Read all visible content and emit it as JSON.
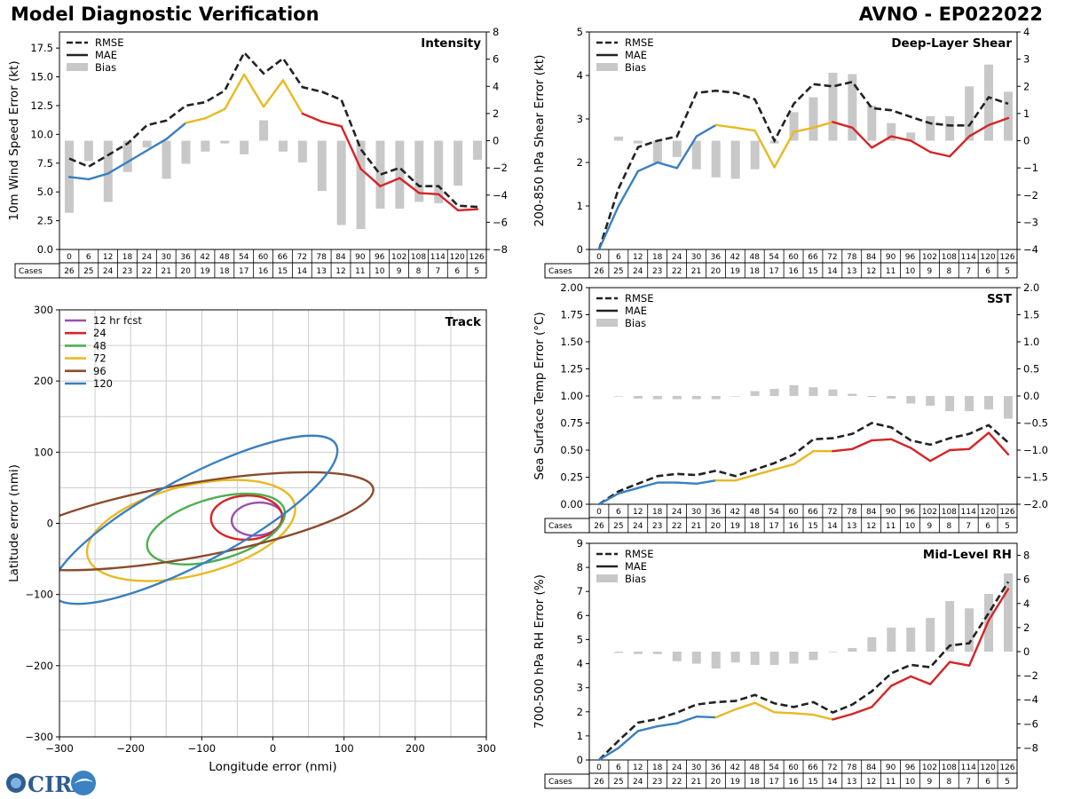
{
  "header": {
    "title_left": "Model Diagnostic Verification",
    "title_right": "AVNO - EP022022"
  },
  "logo_text": "CIRA",
  "leads": [
    "0",
    "6",
    "12",
    "18",
    "24",
    "30",
    "36",
    "42",
    "48",
    "54",
    "60",
    "66",
    "72",
    "78",
    "84",
    "90",
    "96",
    "102",
    "108",
    "114",
    "120",
    "126"
  ],
  "cases_label": "Cases",
  "cases": [
    "26",
    "25",
    "24",
    "23",
    "22",
    "21",
    "20",
    "19",
    "18",
    "17",
    "16",
    "15",
    "14",
    "13",
    "12",
    "11",
    "10",
    "9",
    "8",
    "7",
    "6",
    "5"
  ],
  "legend_labels": {
    "rmse": "RMSE",
    "mae": "MAE",
    "bias": "Bias"
  },
  "colors": {
    "early": "#3a7fbf",
    "mid": "#e8b923",
    "late": "#d62426",
    "rmse": "#222222",
    "bias": "#c8c8c8"
  },
  "chart_data": [
    {
      "id": "intensity",
      "type": "line",
      "title": "Intensity",
      "ylabel": "10m Wind Speed Error (kt)",
      "ylim": [
        0,
        18.9
      ],
      "yticks": [
        "0.0",
        "2.5",
        "5.0",
        "7.5",
        "10.0",
        "12.5",
        "15.0",
        "17.5"
      ],
      "yticks_val": [
        0,
        2.5,
        5,
        7.5,
        10,
        12.5,
        15,
        17.5
      ],
      "y2lim": [
        -8,
        8
      ],
      "y2ticks": [
        "−8",
        "−6",
        "−4",
        "−2",
        "0",
        "2",
        "4",
        "6",
        "8"
      ],
      "y2ticks_val": [
        -8,
        -6,
        -4,
        -2,
        0,
        2,
        4,
        6,
        8
      ],
      "x": [
        0,
        6,
        12,
        18,
        24,
        30,
        36,
        42,
        48,
        54,
        60,
        66,
        72,
        78,
        84,
        90,
        96,
        102,
        108,
        114,
        120,
        126
      ],
      "rmse": [
        7.9,
        7.2,
        8.2,
        9.2,
        10.8,
        11.2,
        12.5,
        12.8,
        13.8,
        17.1,
        15.3,
        16.6,
        14.1,
        13.7,
        13.0,
        8.7,
        6.5,
        7.1,
        5.5,
        5.5,
        3.8,
        3.7
      ],
      "mae": [
        6.3,
        6.1,
        6.6,
        7.6,
        8.6,
        9.6,
        11.0,
        11.4,
        12.2,
        15.2,
        12.4,
        14.7,
        11.8,
        11.1,
        10.7,
        7.0,
        5.5,
        6.2,
        4.9,
        4.8,
        3.4,
        3.5
      ],
      "bias": [
        -5.3,
        -1.5,
        -4.5,
        -2.3,
        -0.5,
        -2.8,
        -1.7,
        -0.8,
        -0.2,
        -1.0,
        1.5,
        -0.8,
        -1.6,
        -3.7,
        -6.2,
        -6.5,
        -5.0,
        -5.0,
        -4.5,
        -4.6,
        -3.3,
        -1.4
      ]
    },
    {
      "id": "shear",
      "type": "line",
      "title": "Deep-Layer Shear",
      "ylabel": "200-850 hPa Shear Error (kt)",
      "ylim": [
        0,
        5
      ],
      "yticks": [
        "0",
        "1",
        "2",
        "3",
        "4",
        "5"
      ],
      "yticks_val": [
        0,
        1,
        2,
        3,
        4,
        5
      ],
      "y2lim": [
        -4,
        4
      ],
      "y2ticks": [
        "−4",
        "−3",
        "−2",
        "−1",
        "0",
        "1",
        "2",
        "3",
        "4"
      ],
      "y2ticks_val": [
        -4,
        -3,
        -2,
        -1,
        0,
        1,
        2,
        3,
        4
      ],
      "x": [
        0,
        6,
        12,
        18,
        24,
        30,
        36,
        42,
        48,
        54,
        60,
        66,
        72,
        78,
        84,
        90,
        96,
        102,
        108,
        114,
        120,
        126
      ],
      "rmse": [
        0.0,
        1.4,
        2.35,
        2.5,
        2.6,
        3.6,
        3.65,
        3.6,
        3.45,
        2.5,
        3.35,
        3.8,
        3.75,
        3.85,
        3.25,
        3.2,
        3.05,
        2.9,
        2.85,
        2.85,
        3.5,
        3.35
      ],
      "mae": [
        0.0,
        1.0,
        1.8,
        2.0,
        1.87,
        2.6,
        2.86,
        2.8,
        2.73,
        1.89,
        2.7,
        2.8,
        2.93,
        2.8,
        2.34,
        2.6,
        2.5,
        2.24,
        2.14,
        2.6,
        2.86,
        3.02
      ],
      "bias": [
        0.0,
        0.15,
        -0.1,
        -0.8,
        -0.6,
        -1.05,
        -1.35,
        -1.4,
        -1.05,
        -0.1,
        1.05,
        1.6,
        2.5,
        2.45,
        1.3,
        0.65,
        0.3,
        0.9,
        0.9,
        2.0,
        2.8,
        1.8
      ]
    },
    {
      "id": "sst",
      "type": "line",
      "title": "SST",
      "ylabel": "Sea Surface Temp Error (°C)",
      "ylim": [
        0,
        2.0
      ],
      "yticks": [
        "0.00",
        "0.25",
        "0.50",
        "0.75",
        "1.00",
        "1.25",
        "1.50",
        "1.75",
        "2.00"
      ],
      "yticks_val": [
        0,
        0.25,
        0.5,
        0.75,
        1,
        1.25,
        1.5,
        1.75,
        2
      ],
      "y2lim": [
        -2.0,
        2.0
      ],
      "y2ticks": [
        "−2.0",
        "−1.5",
        "−1.0",
        "−0.5",
        "0.0",
        "0.5",
        "1.0",
        "1.5",
        "2.0"
      ],
      "y2ticks_val": [
        -2,
        -1.5,
        -1,
        -0.5,
        0,
        0.5,
        1,
        1.5,
        2
      ],
      "x": [
        0,
        6,
        12,
        18,
        24,
        30,
        36,
        42,
        48,
        54,
        60,
        66,
        72,
        78,
        84,
        90,
        96,
        102,
        108,
        114,
        120,
        126
      ],
      "rmse": [
        0.0,
        0.12,
        0.19,
        0.26,
        0.28,
        0.27,
        0.31,
        0.26,
        0.32,
        0.38,
        0.46,
        0.6,
        0.61,
        0.65,
        0.75,
        0.71,
        0.59,
        0.55,
        0.61,
        0.65,
        0.73,
        0.57
      ],
      "mae": [
        0.0,
        0.1,
        0.15,
        0.2,
        0.2,
        0.19,
        0.22,
        0.22,
        0.27,
        0.32,
        0.37,
        0.49,
        0.49,
        0.51,
        0.59,
        0.6,
        0.52,
        0.4,
        0.5,
        0.51,
        0.66,
        0.46
      ],
      "bias": [
        0.0,
        -0.01,
        -0.05,
        -0.06,
        -0.06,
        -0.06,
        -0.06,
        -0.01,
        0.09,
        0.13,
        0.2,
        0.16,
        0.12,
        0.04,
        -0.02,
        -0.05,
        -0.14,
        -0.18,
        -0.28,
        -0.28,
        -0.25,
        -0.42
      ]
    },
    {
      "id": "rh",
      "type": "line",
      "title": "Mid-Level RH",
      "ylabel": "700-500 hPa RH Error (%)",
      "ylim": [
        0,
        9
      ],
      "yticks": [
        "0",
        "1",
        "2",
        "3",
        "4",
        "5",
        "6",
        "7",
        "8",
        "9"
      ],
      "yticks_val": [
        0,
        1,
        2,
        3,
        4,
        5,
        6,
        7,
        8,
        9
      ],
      "y2lim": [
        -9,
        9
      ],
      "y2ticks": [
        "−8",
        "−6",
        "−4",
        "−2",
        "0",
        "2",
        "4",
        "6",
        "8"
      ],
      "y2ticks_val": [
        -8,
        -6,
        -4,
        -2,
        0,
        2,
        4,
        6,
        8
      ],
      "x": [
        0,
        6,
        12,
        18,
        24,
        30,
        36,
        42,
        48,
        54,
        60,
        66,
        72,
        78,
        84,
        90,
        96,
        102,
        108,
        114,
        120,
        126
      ],
      "rmse": [
        0.0,
        0.8,
        1.55,
        1.7,
        1.97,
        2.3,
        2.4,
        2.45,
        2.7,
        2.35,
        2.2,
        2.4,
        1.97,
        2.3,
        2.85,
        3.6,
        3.95,
        3.85,
        4.75,
        4.85,
        6.1,
        7.4
      ],
      "mae": [
        0.0,
        0.5,
        1.2,
        1.4,
        1.52,
        1.8,
        1.77,
        2.1,
        2.37,
        1.98,
        1.94,
        1.88,
        1.68,
        1.91,
        2.2,
        3.08,
        3.47,
        3.15,
        4.07,
        3.92,
        5.8,
        7.1
      ],
      "bias": [
        0.0,
        -0.1,
        -0.2,
        -0.2,
        -0.8,
        -1.0,
        -1.4,
        -0.9,
        -1.1,
        -1.1,
        -1.0,
        -0.7,
        -0.05,
        0.3,
        1.2,
        2.0,
        2.0,
        2.8,
        4.2,
        3.6,
        4.8,
        6.5
      ]
    },
    {
      "id": "track",
      "type": "scatter",
      "title": "Track",
      "xlabel": "Longitude error (nmi)",
      "ylabel": "Latitude error (nmi)",
      "xlim": [
        -300,
        300
      ],
      "ylim": [
        -300,
        300
      ],
      "xticks": [
        "−300",
        "−200",
        "−100",
        "0",
        "100",
        "200",
        "300"
      ],
      "xticks_val": [
        -300,
        -200,
        -100,
        0,
        100,
        200,
        300
      ],
      "yticks": [
        "−300",
        "−200",
        "−100",
        "0",
        "100",
        "200",
        "300"
      ],
      "yticks_val": [
        -300,
        -200,
        -100,
        0,
        100,
        200,
        300
      ],
      "grid_step": 50,
      "ellipses": [
        {
          "label": "12 hr fcst",
          "color": "#9a4fb0",
          "cx": -22,
          "cy": 6,
          "rx": 36,
          "ry": 23,
          "angle": -6
        },
        {
          "label": "24",
          "color": "#d62426",
          "cx": -37,
          "cy": 8,
          "rx": 50,
          "ry": 31,
          "angle": -2
        },
        {
          "label": "48",
          "color": "#4caf50",
          "cx": -80,
          "cy": -8,
          "rx": 100,
          "ry": 43,
          "angle": -16
        },
        {
          "label": "72",
          "color": "#e8b923",
          "cx": -115,
          "cy": -10,
          "rx": 150,
          "ry": 63,
          "angle": -14
        },
        {
          "label": "96",
          "color": "#8b4a2a",
          "cx": -120,
          "cy": 3,
          "rx": 265,
          "ry": 52,
          "angle": -10
        },
        {
          "label": "120",
          "color": "#3a7fbf",
          "cx": -110,
          "cy": 5,
          "rx": 225,
          "ry": 60,
          "angle": -28
        }
      ]
    }
  ]
}
